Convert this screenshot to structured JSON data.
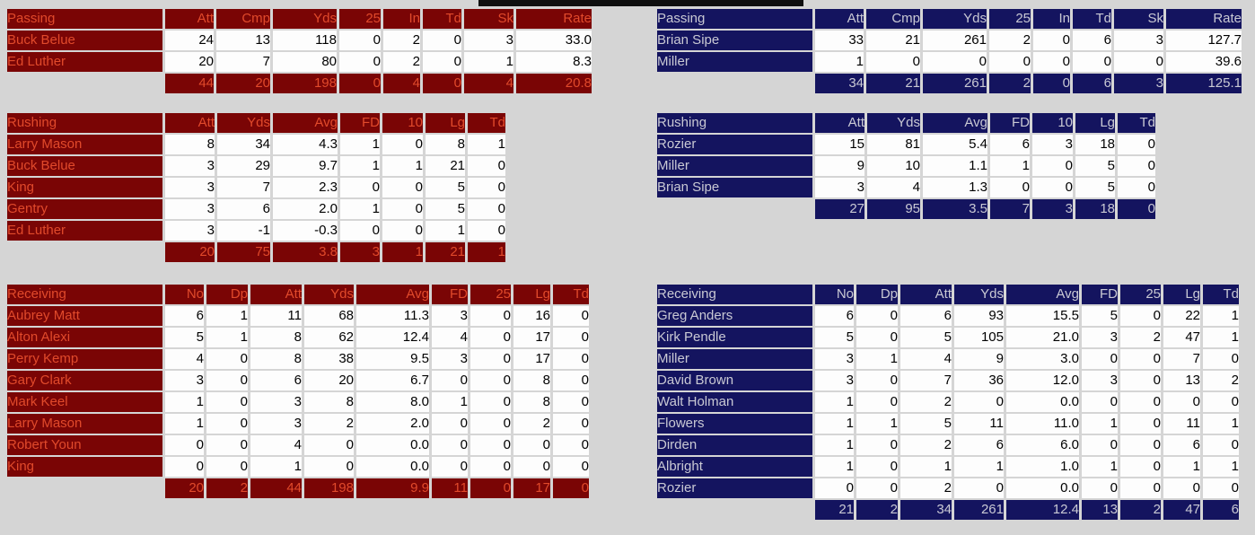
{
  "page": {
    "background_color": "#d5d5d5",
    "scoreboard_bar_color": "#0f0f0f"
  },
  "teams": [
    {
      "side": "left",
      "colors": {
        "bg": "#7a0505",
        "accent": "#e14a2b"
      },
      "passing": {
        "title": "Passing",
        "columns": [
          "Att",
          "Cmp",
          "Yds",
          "25",
          "In",
          "Td",
          "Sk",
          "Rate"
        ],
        "players": [
          {
            "name": "Buck Belue",
            "values": [
              "24",
              "13",
              "118",
              "0",
              "2",
              "0",
              "3",
              "33.0"
            ]
          },
          {
            "name": "Ed Luther",
            "values": [
              "20",
              "7",
              "80",
              "0",
              "2",
              "0",
              "1",
              "8.3"
            ]
          }
        ],
        "totals": [
          "44",
          "20",
          "198",
          "0",
          "4",
          "0",
          "4",
          "20.8"
        ]
      },
      "rushing": {
        "title": "Rushing",
        "columns": [
          "Att",
          "Yds",
          "Avg",
          "FD",
          "10",
          "Lg",
          "Td"
        ],
        "players": [
          {
            "name": "Larry Mason",
            "values": [
              "8",
              "34",
              "4.3",
              "1",
              "0",
              "8",
              "1"
            ]
          },
          {
            "name": "Buck Belue",
            "values": [
              "3",
              "29",
              "9.7",
              "1",
              "1",
              "21",
              "0"
            ]
          },
          {
            "name": "King",
            "values": [
              "3",
              "7",
              "2.3",
              "0",
              "0",
              "5",
              "0"
            ]
          },
          {
            "name": "Gentry",
            "values": [
              "3",
              "6",
              "2.0",
              "1",
              "0",
              "5",
              "0"
            ]
          },
          {
            "name": "Ed Luther",
            "values": [
              "3",
              "-1",
              "-0.3",
              "0",
              "0",
              "1",
              "0"
            ]
          }
        ],
        "totals": [
          "20",
          "75",
          "3.8",
          "3",
          "1",
          "21",
          "1"
        ]
      },
      "receiving": {
        "title": "Receiving",
        "columns": [
          "No",
          "Dp",
          "Att",
          "Yds",
          "Avg",
          "FD",
          "25",
          "Lg",
          "Td"
        ],
        "players": [
          {
            "name": "Aubrey Matt",
            "values": [
              "6",
              "1",
              "11",
              "68",
              "11.3",
              "3",
              "0",
              "16",
              "0"
            ]
          },
          {
            "name": "Alton Alexi",
            "values": [
              "5",
              "1",
              "8",
              "62",
              "12.4",
              "4",
              "0",
              "17",
              "0"
            ]
          },
          {
            "name": "Perry Kemp",
            "values": [
              "4",
              "0",
              "8",
              "38",
              "9.5",
              "3",
              "0",
              "17",
              "0"
            ]
          },
          {
            "name": "Gary Clark",
            "values": [
              "3",
              "0",
              "6",
              "20",
              "6.7",
              "0",
              "0",
              "8",
              "0"
            ]
          },
          {
            "name": "Mark Keel",
            "values": [
              "1",
              "0",
              "3",
              "8",
              "8.0",
              "1",
              "0",
              "8",
              "0"
            ]
          },
          {
            "name": "Larry Mason",
            "values": [
              "1",
              "0",
              "3",
              "2",
              "2.0",
              "0",
              "0",
              "2",
              "0"
            ]
          },
          {
            "name": "Robert Youn",
            "values": [
              "0",
              "0",
              "4",
              "0",
              "0.0",
              "0",
              "0",
              "0",
              "0"
            ]
          },
          {
            "name": "King",
            "values": [
              "0",
              "0",
              "1",
              "0",
              "0.0",
              "0",
              "0",
              "0",
              "0"
            ]
          }
        ],
        "totals": [
          "20",
          "2",
          "44",
          "198",
          "9.9",
          "11",
          "0",
          "17",
          "0"
        ]
      }
    },
    {
      "side": "right",
      "colors": {
        "bg": "#14145f",
        "accent": "#c9c9d4"
      },
      "passing": {
        "title": "Passing",
        "columns": [
          "Att",
          "Cmp",
          "Yds",
          "25",
          "In",
          "Td",
          "Sk",
          "Rate"
        ],
        "players": [
          {
            "name": "Brian Sipe",
            "values": [
              "33",
              "21",
              "261",
              "2",
              "0",
              "6",
              "3",
              "127.7"
            ]
          },
          {
            "name": "Miller",
            "values": [
              "1",
              "0",
              "0",
              "0",
              "0",
              "0",
              "0",
              "39.6"
            ]
          }
        ],
        "totals": [
          "34",
          "21",
          "261",
          "2",
          "0",
          "6",
          "3",
          "125.1"
        ]
      },
      "rushing": {
        "title": "Rushing",
        "columns": [
          "Att",
          "Yds",
          "Avg",
          "FD",
          "10",
          "Lg",
          "Td"
        ],
        "players": [
          {
            "name": "Rozier",
            "values": [
              "15",
              "81",
              "5.4",
              "6",
              "3",
              "18",
              "0"
            ]
          },
          {
            "name": "Miller",
            "values": [
              "9",
              "10",
              "1.1",
              "1",
              "0",
              "5",
              "0"
            ]
          },
          {
            "name": "Brian Sipe",
            "values": [
              "3",
              "4",
              "1.3",
              "0",
              "0",
              "5",
              "0"
            ]
          }
        ],
        "totals": [
          "27",
          "95",
          "3.5",
          "7",
          "3",
          "18",
          "0"
        ]
      },
      "receiving": {
        "title": "Receiving",
        "columns": [
          "No",
          "Dp",
          "Att",
          "Yds",
          "Avg",
          "FD",
          "25",
          "Lg",
          "Td"
        ],
        "players": [
          {
            "name": "Greg Anders",
            "values": [
              "6",
              "0",
              "6",
              "93",
              "15.5",
              "5",
              "0",
              "22",
              "1"
            ]
          },
          {
            "name": "Kirk Pendle",
            "values": [
              "5",
              "0",
              "5",
              "105",
              "21.0",
              "3",
              "2",
              "47",
              "1"
            ]
          },
          {
            "name": "Miller",
            "values": [
              "3",
              "1",
              "4",
              "9",
              "3.0",
              "0",
              "0",
              "7",
              "0"
            ]
          },
          {
            "name": "David Brown",
            "values": [
              "3",
              "0",
              "7",
              "36",
              "12.0",
              "3",
              "0",
              "13",
              "2"
            ]
          },
          {
            "name": "Walt Holman",
            "values": [
              "1",
              "0",
              "2",
              "0",
              "0.0",
              "0",
              "0",
              "0",
              "0"
            ]
          },
          {
            "name": "Flowers",
            "values": [
              "1",
              "1",
              "5",
              "11",
              "11.0",
              "1",
              "0",
              "11",
              "1"
            ]
          },
          {
            "name": "Dirden",
            "values": [
              "1",
              "0",
              "2",
              "6",
              "6.0",
              "0",
              "0",
              "6",
              "0"
            ]
          },
          {
            "name": "Albright",
            "values": [
              "1",
              "0",
              "1",
              "1",
              "1.0",
              "1",
              "0",
              "1",
              "1"
            ]
          },
          {
            "name": "Rozier",
            "values": [
              "0",
              "0",
              "2",
              "0",
              "0.0",
              "0",
              "0",
              "0",
              "0"
            ]
          }
        ],
        "totals": [
          "21",
          "2",
          "34",
          "261",
          "12.4",
          "13",
          "2",
          "47",
          "6"
        ]
      }
    }
  ]
}
